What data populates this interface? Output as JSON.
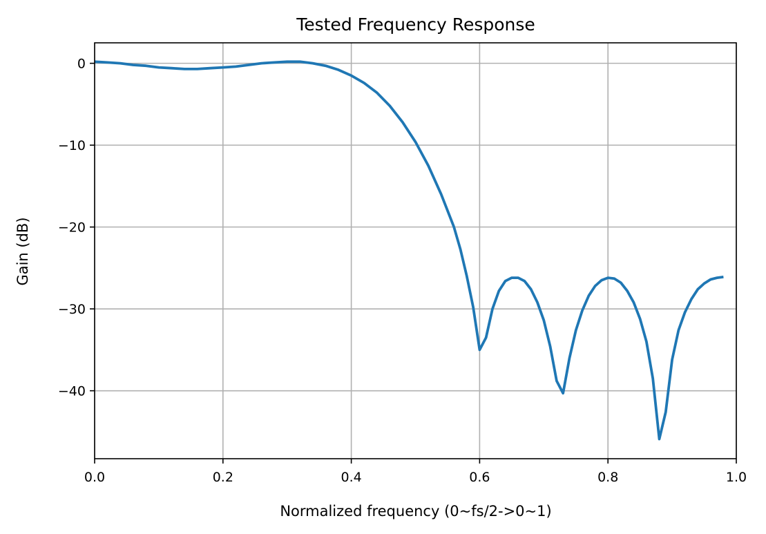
{
  "chart_data": {
    "type": "line",
    "title": "Tested Frequency Response",
    "xlabel": "Normalized frequency (0~fs/2->0~1)",
    "ylabel": "Gain (dB)",
    "xlim": [
      0.0,
      1.0
    ],
    "ylim": [
      -48.3,
      2.5
    ],
    "xticks": [
      0.0,
      0.2,
      0.4,
      0.6,
      0.8,
      1.0
    ],
    "xtick_labels": [
      "0.0",
      "0.2",
      "0.4",
      "0.6",
      "0.8",
      "1.0"
    ],
    "yticks": [
      0,
      -10,
      -20,
      -30,
      -40
    ],
    "ytick_labels": [
      "0",
      "−10",
      "−20",
      "−30",
      "−40"
    ],
    "grid": true,
    "colors": {
      "line": "#1f77b4",
      "grid": "#b0b0b0",
      "axes": "#000000"
    },
    "series": [
      {
        "x": [
          0.0,
          0.02,
          0.04,
          0.06,
          0.08,
          0.1,
          0.12,
          0.14,
          0.16,
          0.18,
          0.2,
          0.22,
          0.24,
          0.26,
          0.28,
          0.3,
          0.32,
          0.34,
          0.36,
          0.38,
          0.4,
          0.42,
          0.44,
          0.46,
          0.48,
          0.5,
          0.52,
          0.54,
          0.56,
          0.57,
          0.58,
          0.59,
          0.6,
          0.61,
          0.62,
          0.63,
          0.64,
          0.65,
          0.66,
          0.67,
          0.68,
          0.69,
          0.7,
          0.71,
          0.72,
          0.73,
          0.74,
          0.75,
          0.76,
          0.77,
          0.78,
          0.79,
          0.8,
          0.81,
          0.82,
          0.83,
          0.84,
          0.85,
          0.86,
          0.87,
          0.88,
          0.89,
          0.9,
          0.91,
          0.92,
          0.93,
          0.94,
          0.95,
          0.96,
          0.97,
          0.98
        ],
        "y": [
          0.2,
          0.1,
          0.0,
          -0.2,
          -0.3,
          -0.5,
          -0.6,
          -0.7,
          -0.7,
          -0.6,
          -0.5,
          -0.4,
          -0.2,
          0.0,
          0.1,
          0.2,
          0.2,
          0.0,
          -0.3,
          -0.8,
          -1.5,
          -2.4,
          -3.6,
          -5.2,
          -7.2,
          -9.6,
          -12.5,
          -16.0,
          -20.0,
          -22.7,
          -26.0,
          -29.8,
          -35.0,
          -33.5,
          -30.0,
          -27.8,
          -26.6,
          -26.2,
          -26.2,
          -26.6,
          -27.6,
          -29.2,
          -31.4,
          -34.6,
          -38.8,
          -40.3,
          -36.0,
          -32.6,
          -30.2,
          -28.4,
          -27.2,
          -26.5,
          -26.2,
          -26.3,
          -26.8,
          -27.8,
          -29.2,
          -31.2,
          -34.0,
          -38.5,
          -45.9,
          -42.6,
          -36.2,
          -32.6,
          -30.4,
          -28.8,
          -27.6,
          -26.9,
          -26.4,
          -26.2,
          -26.1
        ]
      }
    ]
  }
}
